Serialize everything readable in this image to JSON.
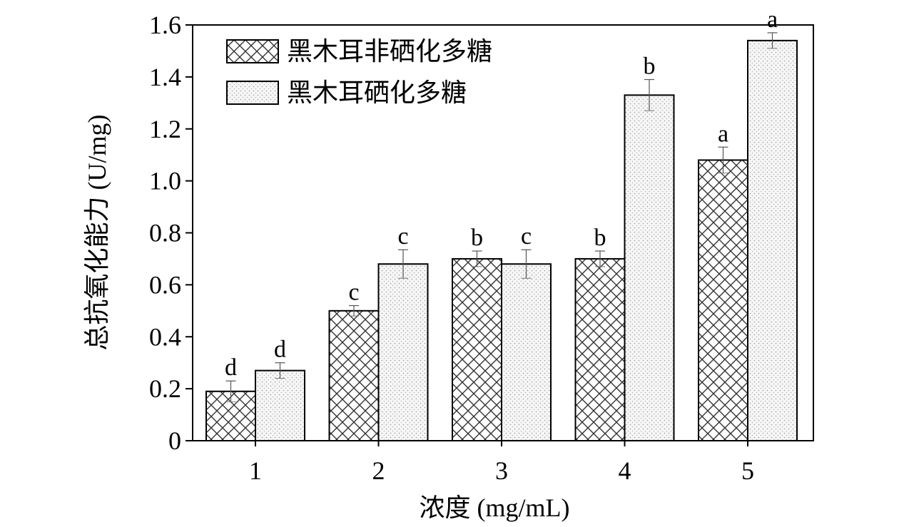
{
  "chart_data": {
    "type": "bar",
    "xlabel": "浓度 (mg/mL)",
    "ylabel": "总抗氧化能力 (U/mg)",
    "categories": [
      "1",
      "2",
      "3",
      "4",
      "5"
    ],
    "ylim": [
      0,
      1.6
    ],
    "yticks": [
      "0",
      "0.2",
      "0.4",
      "0.6",
      "0.8",
      "1.0",
      "1.2",
      "1.4",
      "1.6"
    ],
    "grid": false,
    "legend_position": "top-left",
    "series": [
      {
        "name": "黑木耳非硒化多糖",
        "pattern": "crosshatch",
        "values": [
          0.19,
          0.5,
          0.7,
          0.7,
          1.08
        ],
        "errors": [
          0.04,
          0.02,
          0.03,
          0.03,
          0.05
        ],
        "letters": [
          "d",
          "c",
          "b",
          "b",
          "a"
        ]
      },
      {
        "name": "黑木耳硒化多糖",
        "pattern": "dotted",
        "values": [
          0.27,
          0.68,
          0.68,
          1.33,
          1.54
        ],
        "errors": [
          0.03,
          0.055,
          0.055,
          0.06,
          0.03
        ],
        "letters": [
          "d",
          "c",
          "c",
          "b",
          "a"
        ]
      }
    ]
  }
}
